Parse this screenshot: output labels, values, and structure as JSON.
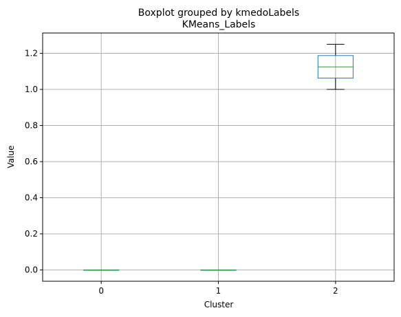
{
  "figure": {
    "suptitle": "Boxplot grouped by kmedoLabels"
  },
  "chart_data": {
    "type": "box",
    "title": "KMeans_Labels",
    "xlabel": "Cluster",
    "ylabel": "Value",
    "categories": [
      "0",
      "1",
      "2"
    ],
    "ylim": [
      -0.0625,
      1.3125
    ],
    "yticks": [
      0.0,
      0.2,
      0.4,
      0.6,
      0.8,
      1.0,
      1.2
    ],
    "ytick_labels": [
      "0.0",
      "0.2",
      "0.4",
      "0.6",
      "0.8",
      "1.0",
      "1.2"
    ],
    "grid": true,
    "boxes": [
      {
        "category": "0",
        "whisker_low": 0.0,
        "q1": 0.0,
        "median": 0.0,
        "q3": 0.0,
        "whisker_high": 0.0
      },
      {
        "category": "1",
        "whisker_low": 0.0,
        "q1": 0.0,
        "median": 0.0,
        "q3": 0.0,
        "whisker_high": 0.0
      },
      {
        "category": "2",
        "whisker_low": 1.0,
        "q1": 1.0625,
        "median": 1.125,
        "q3": 1.1875,
        "whisker_high": 1.25
      }
    ],
    "colors": {
      "box": "#1f77b4",
      "median": "#2ca02c",
      "whisker": "#000000",
      "grid": "#b0b0b0",
      "axes": "#000000"
    }
  }
}
